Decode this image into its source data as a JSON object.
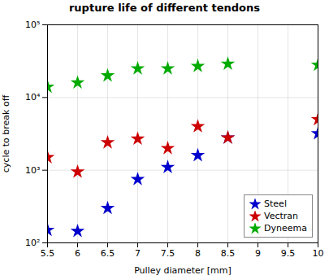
{
  "chart_data": {
    "type": "scatter",
    "title": "rupture life of different tendons",
    "xlabel": "Pulley diameter [mm]",
    "ylabel": "cycle to break off",
    "log": "y",
    "grid": true,
    "legend": "lower right",
    "marker": "star",
    "xlim": [
      5.5,
      10.0
    ],
    "ylim": [
      100,
      100000
    ],
    "xticks": [
      5.5,
      6,
      6.5,
      7,
      7.5,
      8,
      8.5,
      9,
      9.5,
      10
    ],
    "yticks": [
      {
        "value": 100,
        "label": "10²"
      },
      {
        "value": 1000,
        "label": "10³"
      },
      {
        "value": 10000,
        "label": "10⁴"
      },
      {
        "value": 100000,
        "label": "10⁵"
      }
    ],
    "x": [
      5.5,
      6.0,
      6.5,
      7.0,
      7.5,
      8.0,
      8.5,
      10.0
    ],
    "series": [
      {
        "name": "Steel",
        "color": "#0000cc",
        "values": [
          150,
          145,
          300,
          750,
          1100,
          1600,
          2800,
          3200
        ]
      },
      {
        "name": "Vectran",
        "color": "#cc0000",
        "values": [
          1500,
          950,
          2400,
          2700,
          2000,
          4000,
          2800,
          5000
        ]
      },
      {
        "name": "Dyneema",
        "color": "#00aa00",
        "values": [
          14000,
          16000,
          20000,
          25000,
          25000,
          27000,
          29000,
          28000
        ]
      }
    ]
  }
}
